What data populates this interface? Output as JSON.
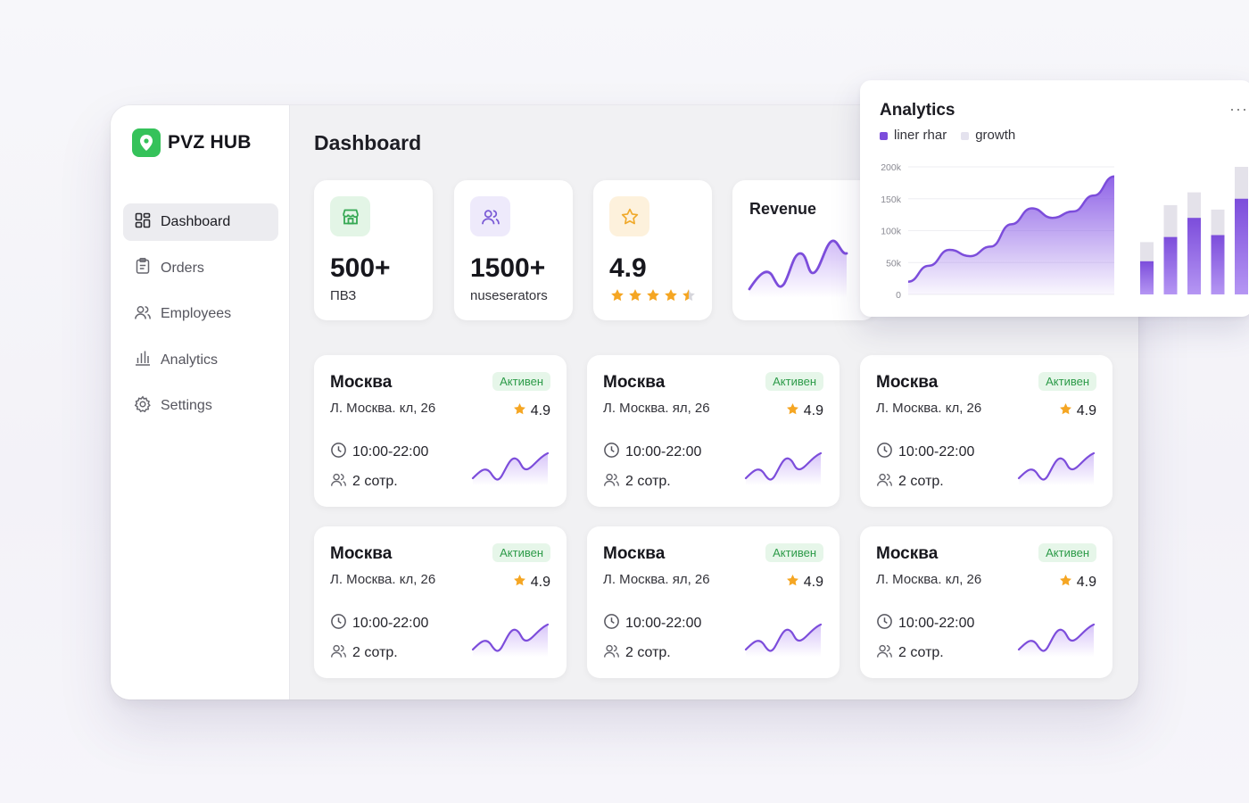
{
  "app": {
    "name": "PVZ HUB"
  },
  "sidebar": {
    "items": [
      {
        "label": "Dashboard",
        "icon": "dashboard-icon",
        "active": true
      },
      {
        "label": "Orders",
        "icon": "clipboard-icon",
        "active": false
      },
      {
        "label": "Employees",
        "icon": "users-icon",
        "active": false
      },
      {
        "label": "Analytics",
        "icon": "bar-chart-icon",
        "active": false
      },
      {
        "label": "Settings",
        "icon": "gear-icon",
        "active": false
      }
    ]
  },
  "main": {
    "title": "Dashboard"
  },
  "stats": [
    {
      "value": "500+",
      "label": "ПВЗ",
      "icon": "store-icon",
      "icon_bg": "#e3f5e6",
      "icon_color": "#35a853"
    },
    {
      "value": "1500+",
      "label": "nuseserators",
      "icon": "users-icon",
      "icon_bg": "#eeeafb",
      "icon_color": "#7a5ad6"
    },
    {
      "value": "4.9",
      "icon": "star-icon",
      "icon_bg": "#fdf1dc",
      "icon_color": "#f0a92a",
      "stars": 4.5
    }
  ],
  "revenue": {
    "title": "Revenue"
  },
  "cards": [
    {
      "city": "Москва",
      "status": "Активен",
      "address": "Л. Москва. кл, 26",
      "rating": "4.9",
      "hours": "10:00-22:00",
      "staff": "2 сотр."
    },
    {
      "city": "Москва",
      "status": "Активен",
      "address": "Л. Москва. ял, 26",
      "rating": "4.9",
      "hours": "10:00-22:00",
      "staff": "2 сотр."
    },
    {
      "city": "Москва",
      "status": "Активен",
      "address": "Л. Москва. кл, 26",
      "rating": "4.9",
      "hours": "10:00-22:00",
      "staff": "2 сотр."
    },
    {
      "city": "Москва",
      "status": "Активен",
      "address": "Л. Москва. кл, 26",
      "rating": "4.9",
      "hours": "10:00-22:00",
      "staff": "2 сотр."
    },
    {
      "city": "Москва",
      "status": "Активен",
      "address": "Л. Москва. ял, 26",
      "rating": "4.9",
      "hours": "10:00-22:00",
      "staff": "2 сотр."
    },
    {
      "city": "Москва",
      "status": "Активен",
      "address": "Л. Москва. кл, 26",
      "rating": "4.9",
      "hours": "10:00-22:00",
      "staff": "2 сотр."
    }
  ],
  "analytics": {
    "title": "Analytics",
    "more": "···",
    "legend": [
      {
        "label": "liner rhar",
        "color": "#7c4ddb"
      },
      {
        "label": "growth",
        "color": "#e4e2ee"
      }
    ]
  },
  "chart_data": {
    "type": "area",
    "ylim": [
      0,
      200000
    ],
    "yticks": [
      "200k",
      "150k",
      "100k",
      "50k",
      "0"
    ],
    "ytick_values": [
      200000,
      150000,
      100000,
      50000,
      0
    ],
    "series": [
      {
        "name": "liner rhar",
        "values": [
          20000,
          45000,
          70000,
          60000,
          75000,
          110000,
          135000,
          120000,
          130000,
          155000,
          185000
        ]
      }
    ],
    "bars": {
      "growth": [
        82000,
        140000,
        160000,
        133000,
        200000
      ],
      "liner rhar": [
        52000,
        90000,
        120000,
        93000,
        150000
      ]
    },
    "colors": {
      "line": "#7c4ddb",
      "area_top": "#8a5ce6",
      "bar_fill": "#8d5de3",
      "bar_bg": "#e4e2ea"
    }
  }
}
